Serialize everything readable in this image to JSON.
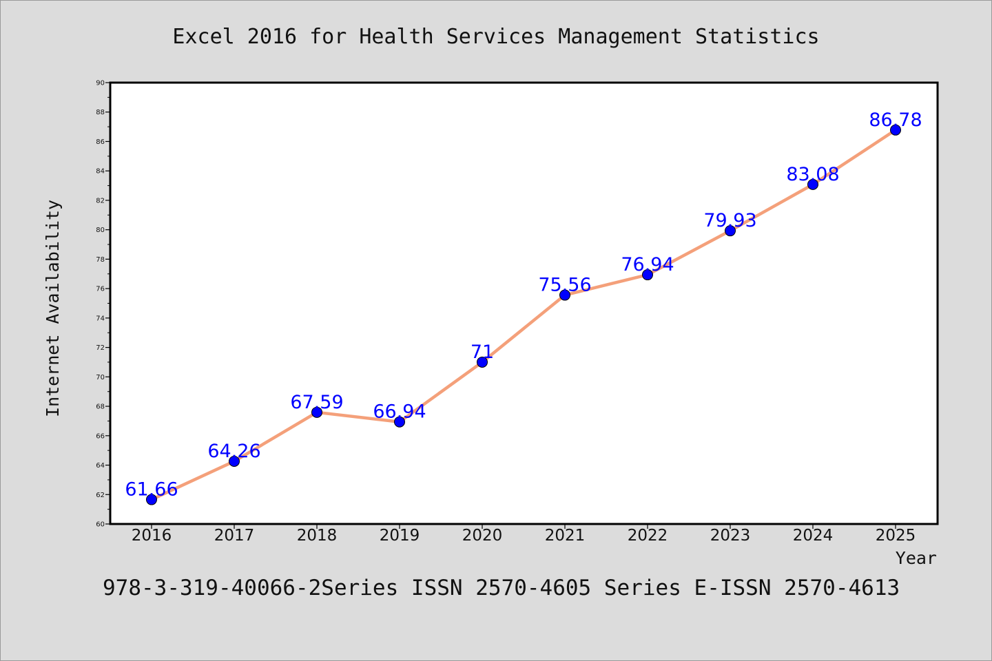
{
  "chart_data": {
    "type": "line",
    "title": "Excel 2016 for Health Services Management Statistics",
    "xlabel": "Year",
    "ylabel": "Internet Availability",
    "footer": "978-3-319-40066-2Series ISSN 2570-4605 Series E-ISSN 2570-4613",
    "categories": [
      "2016",
      "2017",
      "2018",
      "2019",
      "2020",
      "2021",
      "2022",
      "2023",
      "2024",
      "2025"
    ],
    "series": [
      {
        "values": [
          61.66,
          64.26,
          67.59,
          66.94,
          71,
          75.56,
          76.94,
          79.93,
          83.08,
          86.78
        ],
        "data_labels": [
          "61.66",
          "64.26",
          "67.59",
          "66.94",
          "71",
          "75.56",
          "76.94",
          "79.93",
          "83.08",
          "86.78"
        ],
        "line_color": "#f4a07a",
        "marker_color": "#0000ff",
        "label_color": "#0000ff"
      }
    ],
    "ylim": [
      60,
      90
    ],
    "yticks": [
      "60",
      "62",
      "64",
      "66",
      "68",
      "70",
      "72",
      "74",
      "76",
      "78",
      "80",
      "82",
      "84",
      "86",
      "88",
      "90"
    ],
    "grid": false,
    "legend": "none"
  }
}
